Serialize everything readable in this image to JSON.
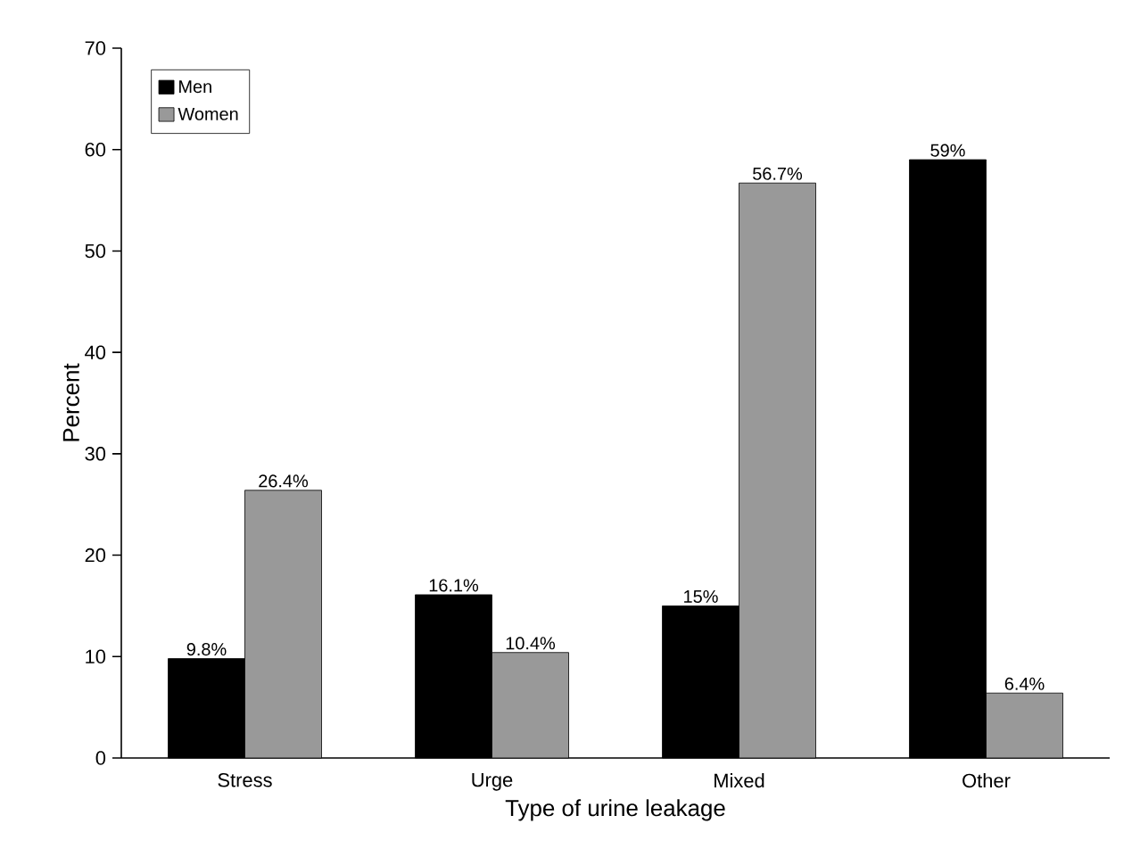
{
  "chart_data": {
    "type": "bar",
    "xlabel": "Type of urine leakage",
    "ylabel": "Percent",
    "categories": [
      "Stress",
      "Urge",
      "Mixed",
      "Other"
    ],
    "series": [
      {
        "name": "Men",
        "color": "#000000",
        "values": [
          9.8,
          16.1,
          15,
          59
        ],
        "value_labels": [
          "9.8%",
          "16.1%",
          "15%",
          "59%"
        ]
      },
      {
        "name": "Women",
        "color": "#999999",
        "values": [
          26.4,
          10.4,
          56.7,
          6.4
        ],
        "value_labels": [
          "26.4%",
          "10.4%",
          "56.7%",
          "6.4%"
        ]
      }
    ],
    "ylim": [
      0,
      70
    ],
    "yticks": [
      0,
      10,
      20,
      30,
      40,
      50,
      60,
      70
    ],
    "grid": false,
    "legend": "top left"
  }
}
